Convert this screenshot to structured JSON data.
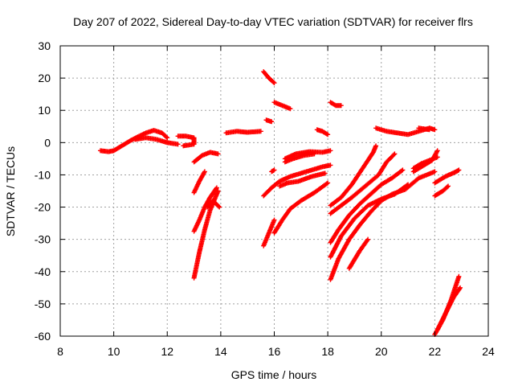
{
  "chart_data": {
    "type": "scatter",
    "title": "Day 207 of 2022, Sidereal Day-to-day VTEC variation (SDTVAR) for receiver flrs",
    "xlabel": "GPS time / hours",
    "ylabel": "SDTVAR / TECUs",
    "xlim": [
      8,
      24
    ],
    "ylim": [
      -60,
      30
    ],
    "xticks": [
      8,
      10,
      12,
      14,
      16,
      18,
      20,
      22,
      24
    ],
    "yticks": [
      -60,
      -50,
      -40,
      -30,
      -20,
      -10,
      0,
      10,
      20,
      30
    ],
    "grid": true,
    "marker": "+",
    "color": "#ff0000",
    "series": [
      {
        "segments": [
          [
            [
              9.5,
              -2.5
            ],
            [
              9.8,
              -2.8
            ],
            [
              10.0,
              -2.5
            ],
            [
              10.3,
              -1.0
            ],
            [
              10.6,
              0.5
            ],
            [
              10.9,
              1.8
            ],
            [
              11.2,
              3.0
            ],
            [
              11.5,
              3.8
            ],
            [
              11.8,
              3.0
            ],
            [
              12.0,
              1.5
            ]
          ],
          [
            [
              10.8,
              1.0
            ],
            [
              11.2,
              1.5
            ],
            [
              11.6,
              1.0
            ],
            [
              12.0,
              0.0
            ],
            [
              12.4,
              -0.5
            ]
          ],
          [
            [
              12.4,
              2.0
            ],
            [
              12.7,
              2.0
            ],
            [
              13.0,
              1.5
            ],
            [
              13.0,
              -0.5
            ],
            [
              12.6,
              -1.0
            ]
          ],
          [
            [
              13.0,
              -6.0
            ],
            [
              13.3,
              -4.0
            ],
            [
              13.6,
              -3.0
            ],
            [
              13.9,
              -3.5
            ]
          ],
          [
            [
              13.0,
              -15.5
            ],
            [
              13.2,
              -12.0
            ],
            [
              13.4,
              -9.0
            ]
          ],
          [
            [
              13.0,
              -27.5
            ],
            [
              13.2,
              -24.0
            ],
            [
              13.4,
              -20.0
            ],
            [
              13.6,
              -17.0
            ],
            [
              13.85,
              -14.0
            ]
          ],
          [
            [
              13.0,
              -42.0
            ],
            [
              13.2,
              -34.0
            ],
            [
              13.4,
              -27.0
            ],
            [
              13.6,
              -21.0
            ],
            [
              13.9,
              -15.0
            ]
          ],
          [
            [
              13.5,
              -20.0
            ],
            [
              13.7,
              -18.0
            ],
            [
              13.95,
              -20.0
            ]
          ],
          [
            [
              14.2,
              3.0
            ],
            [
              14.6,
              3.5
            ],
            [
              15.0,
              3.2
            ],
            [
              15.5,
              3.5
            ]
          ],
          [
            [
              15.6,
              22.0
            ],
            [
              15.8,
              20.0
            ],
            [
              16.0,
              18.5
            ]
          ],
          [
            [
              15.7,
              7.0
            ],
            [
              15.9,
              6.5
            ]
          ],
          [
            [
              16.0,
              12.5
            ],
            [
              16.3,
              11.5
            ],
            [
              16.6,
              10.5
            ]
          ],
          [
            [
              15.6,
              -16.5
            ],
            [
              15.9,
              -14.0
            ],
            [
              16.2,
              -12.0
            ],
            [
              16.6,
              -10.5
            ],
            [
              17.2,
              -9.0
            ],
            [
              17.8,
              -7.5
            ],
            [
              18.1,
              -7.0
            ]
          ],
          [
            [
              15.6,
              -32.0
            ],
            [
              15.8,
              -28.0
            ],
            [
              16.0,
              -24.0
            ]
          ],
          [
            [
              16.0,
              -28.0
            ],
            [
              16.3,
              -24.0
            ],
            [
              16.6,
              -20.5
            ],
            [
              17.0,
              -18.0
            ],
            [
              17.5,
              -15.5
            ],
            [
              18.0,
              -12.5
            ]
          ],
          [
            [
              15.9,
              -9.0
            ],
            [
              16.0,
              -8.5
            ]
          ],
          [
            [
              16.2,
              -13.5
            ],
            [
              16.5,
              -12.5
            ],
            [
              16.9,
              -12.0
            ],
            [
              17.4,
              -10.5
            ],
            [
              17.9,
              -9.5
            ]
          ],
          [
            [
              16.4,
              -5.0
            ],
            [
              16.8,
              -3.5
            ],
            [
              17.3,
              -2.8
            ],
            [
              17.8,
              -3.0
            ],
            [
              18.1,
              -2.5
            ]
          ],
          [
            [
              16.4,
              -6.0
            ],
            [
              16.7,
              -5.0
            ],
            [
              17.1,
              -4.0
            ],
            [
              17.5,
              -3.5
            ]
          ],
          [
            [
              17.6,
              4.0
            ],
            [
              17.8,
              3.5
            ],
            [
              18.0,
              2.5
            ]
          ],
          [
            [
              18.1,
              12.5
            ],
            [
              18.3,
              11.5
            ],
            [
              18.5,
              11.5
            ]
          ],
          [
            [
              18.1,
              -19.5
            ],
            [
              18.5,
              -17.0
            ],
            [
              18.9,
              -13.0
            ],
            [
              19.3,
              -8.0
            ],
            [
              19.7,
              -3.0
            ],
            [
              19.8,
              -1.0
            ]
          ],
          [
            [
              18.1,
              -22.0
            ],
            [
              18.5,
              -19.5
            ],
            [
              18.9,
              -17.0
            ],
            [
              19.4,
              -13.5
            ],
            [
              19.9,
              -10.0
            ],
            [
              20.2,
              -6.0
            ],
            [
              20.5,
              -3.5
            ]
          ],
          [
            [
              18.1,
              -31.0
            ],
            [
              18.4,
              -27.0
            ],
            [
              18.8,
              -22.5
            ],
            [
              19.2,
              -19.0
            ],
            [
              19.6,
              -16.0
            ],
            [
              20.0,
              -13.0
            ],
            [
              20.4,
              -11.0
            ],
            [
              20.8,
              -8.5
            ]
          ],
          [
            [
              18.1,
              -35.5
            ],
            [
              18.5,
              -29.0
            ],
            [
              19.0,
              -23.5
            ],
            [
              19.5,
              -19.5
            ],
            [
              20.0,
              -17.5
            ],
            [
              20.5,
              -16.0
            ],
            [
              21.0,
              -13.0
            ]
          ],
          [
            [
              18.1,
              -42.5
            ],
            [
              18.4,
              -36.0
            ],
            [
              18.8,
              -30.0
            ],
            [
              19.2,
              -25.5
            ],
            [
              19.6,
              -21.5
            ],
            [
              20.0,
              -18.0
            ],
            [
              20.4,
              -16.0
            ],
            [
              20.9,
              -14.5
            ],
            [
              21.4,
              -11.0
            ],
            [
              22.0,
              -9.0
            ]
          ],
          [
            [
              18.8,
              -39.0
            ],
            [
              19.2,
              -33.5
            ],
            [
              19.5,
              -30.0
            ]
          ],
          [
            [
              19.8,
              4.5
            ],
            [
              20.2,
              3.5
            ],
            [
              20.6,
              3.0
            ],
            [
              21.0,
              2.5
            ],
            [
              21.4,
              3.5
            ],
            [
              21.8,
              4.5
            ],
            [
              22.0,
              4.0
            ]
          ],
          [
            [
              21.4,
              4.5
            ],
            [
              21.8,
              4.0
            ]
          ],
          [
            [
              21.2,
              -9.0
            ],
            [
              21.6,
              -7.0
            ],
            [
              21.9,
              -5.5
            ],
            [
              22.1,
              -2.5
            ]
          ],
          [
            [
              21.2,
              -8.0
            ],
            [
              21.5,
              -6.5
            ],
            [
              21.8,
              -5.5
            ],
            [
              22.1,
              -4.5
            ]
          ],
          [
            [
              22.0,
              -12.5
            ],
            [
              22.4,
              -10.5
            ],
            [
              22.8,
              -9.0
            ],
            [
              22.9,
              -8.5
            ]
          ],
          [
            [
              22.0,
              -16.5
            ],
            [
              22.3,
              -15.0
            ],
            [
              22.5,
              -13.5
            ]
          ],
          [
            [
              22.0,
              -59.5
            ],
            [
              22.3,
              -55.0
            ],
            [
              22.6,
              -49.0
            ],
            [
              22.9,
              -41.5
            ]
          ],
          [
            [
              22.1,
              -58.0
            ],
            [
              22.4,
              -53.0
            ],
            [
              22.7,
              -48.0
            ],
            [
              22.95,
              -45.0
            ]
          ]
        ]
      }
    ]
  }
}
